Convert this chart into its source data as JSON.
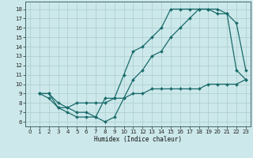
{
  "bg_color": "#cce8ea",
  "grid_color": "#aacccc",
  "line_color": "#1a6b6b",
  "xlabel": "Humidex (Indice chaleur)",
  "xlim": [
    -0.5,
    23.5
  ],
  "ylim": [
    5.5,
    18.8
  ],
  "yticks": [
    6,
    7,
    8,
    9,
    10,
    11,
    12,
    13,
    14,
    15,
    16,
    17,
    18
  ],
  "xticks": [
    0,
    1,
    2,
    3,
    4,
    5,
    6,
    7,
    8,
    9,
    10,
    11,
    12,
    13,
    14,
    15,
    16,
    17,
    18,
    19,
    20,
    21,
    22,
    23
  ],
  "curve1_x": [
    1,
    2,
    3,
    4,
    5,
    6,
    7,
    8,
    9,
    10,
    11,
    12,
    13,
    14,
    15,
    16,
    17,
    18,
    19,
    20,
    21,
    22,
    23
  ],
  "curve1_y": [
    9,
    9,
    7.5,
    7.0,
    6.5,
    6.5,
    6.5,
    8.5,
    8.5,
    11.0,
    13.5,
    14.0,
    15.0,
    16.0,
    18.0,
    18.0,
    18.0,
    18.0,
    18.0,
    17.5,
    17.5,
    11.5,
    10.5
  ],
  "curve2_x": [
    1,
    2,
    3,
    4,
    5,
    6,
    7,
    8,
    9,
    10,
    11,
    12,
    13,
    14,
    15,
    16,
    17,
    18,
    19,
    20,
    21,
    22,
    23
  ],
  "curve2_y": [
    9,
    9,
    8.0,
    7.5,
    7.0,
    7.0,
    6.5,
    6.0,
    6.5,
    8.5,
    10.5,
    11.5,
    13.0,
    13.5,
    15.0,
    16.0,
    17.0,
    18.0,
    18.0,
    18.0,
    17.5,
    16.5,
    11.5
  ],
  "curve3_x": [
    1,
    2,
    3,
    4,
    5,
    6,
    7,
    8,
    9,
    10,
    11,
    12,
    13,
    14,
    15,
    16,
    17,
    18,
    19,
    20,
    21,
    22,
    23
  ],
  "curve3_y": [
    9,
    8.5,
    7.5,
    7.5,
    8.0,
    8.0,
    8.0,
    8.0,
    8.5,
    8.5,
    9.0,
    9.0,
    9.5,
    9.5,
    9.5,
    9.5,
    9.5,
    9.5,
    10.0,
    10.0,
    10.0,
    10.0,
    10.5
  ]
}
